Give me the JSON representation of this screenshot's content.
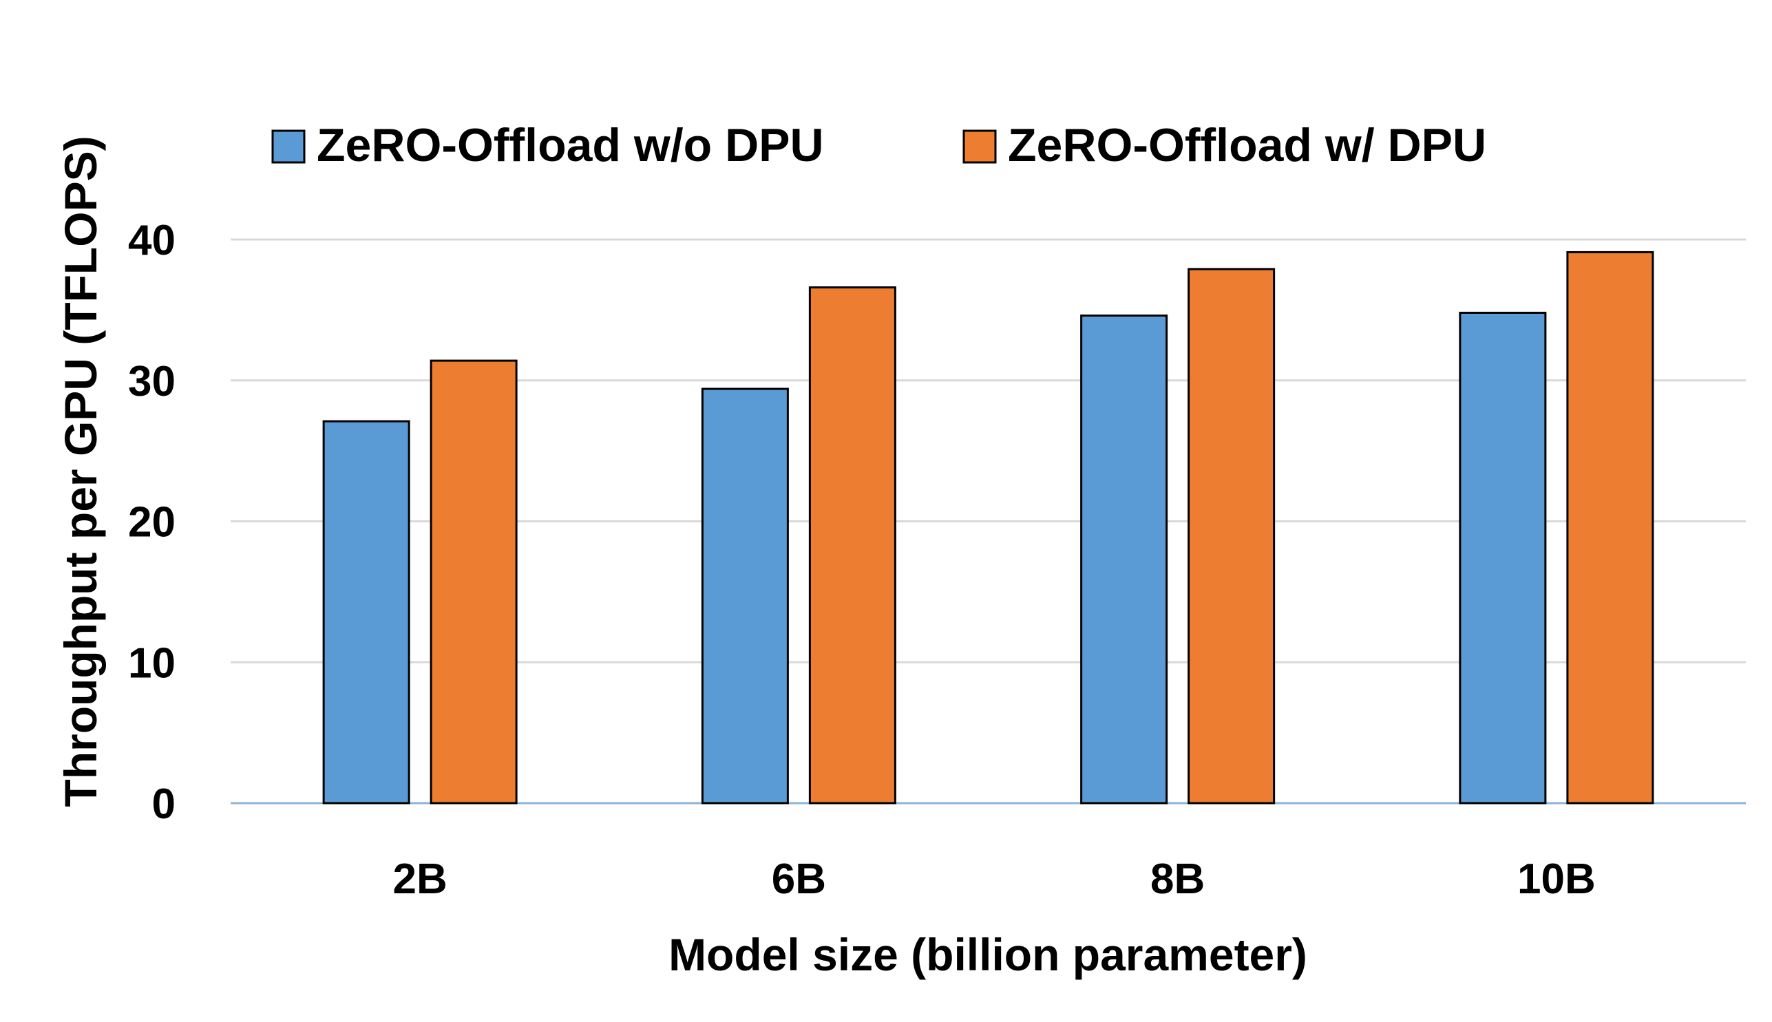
{
  "chart_data": {
    "type": "bar",
    "title": "",
    "xlabel": "Model size (billion parameter)",
    "ylabel": "Throughput per GPU (TFLOPS)",
    "categories": [
      "2B",
      "6B",
      "8B",
      "10B"
    ],
    "ylim": [
      0,
      40
    ],
    "yticks": [
      0,
      10,
      20,
      30,
      40
    ],
    "grid": true,
    "legend_position": "top",
    "series": [
      {
        "name": "ZeRO-Offload w/o DPU",
        "color": "#5b9bd5",
        "values": [
          27.1,
          29.4,
          34.6,
          34.8
        ]
      },
      {
        "name": "ZeRO-Offload w/ DPU",
        "color": "#ed7d31",
        "values": [
          31.4,
          36.6,
          37.9,
          39.1
        ]
      }
    ]
  }
}
